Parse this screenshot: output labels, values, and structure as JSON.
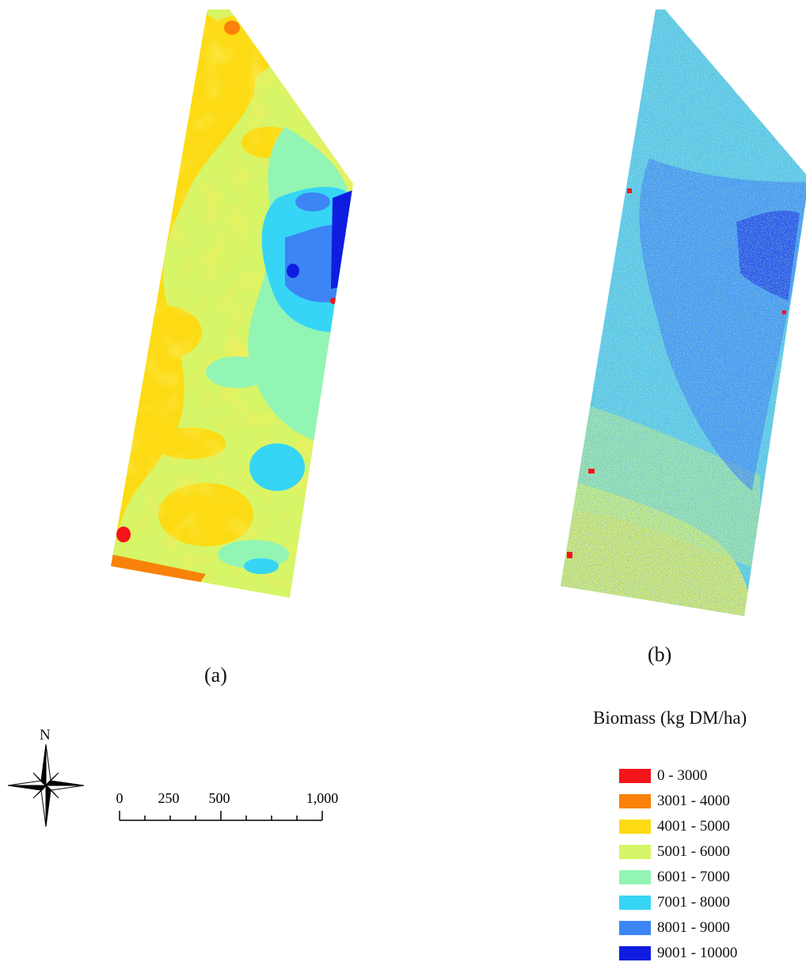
{
  "panels": [
    {
      "caption": "(a)"
    },
    {
      "caption": "(b)"
    }
  ],
  "legend": {
    "title": "Biomass (kg DM/ha)",
    "classes": [
      {
        "label": "0 - 3000",
        "color": "#f5141a"
      },
      {
        "label": "3001 - 4000",
        "color": "#f8820a"
      },
      {
        "label": "4001 - 5000",
        "color": "#fcdb14"
      },
      {
        "label": "5001 - 6000",
        "color": "#d6f567"
      },
      {
        "label": "6001 - 7000",
        "color": "#92f5b4"
      },
      {
        "label": "7001 - 8000",
        "color": "#36d5f5"
      },
      {
        "label": "8001 - 9000",
        "color": "#3d84f5"
      },
      {
        "label": "9001 - 10000",
        "color": "#0f1de0"
      }
    ]
  },
  "north_arrow": {
    "label": "N",
    "icon": "north-arrow-icon"
  },
  "scale_bar": {
    "labels": [
      "0",
      "250",
      "500",
      "1,000"
    ]
  }
}
